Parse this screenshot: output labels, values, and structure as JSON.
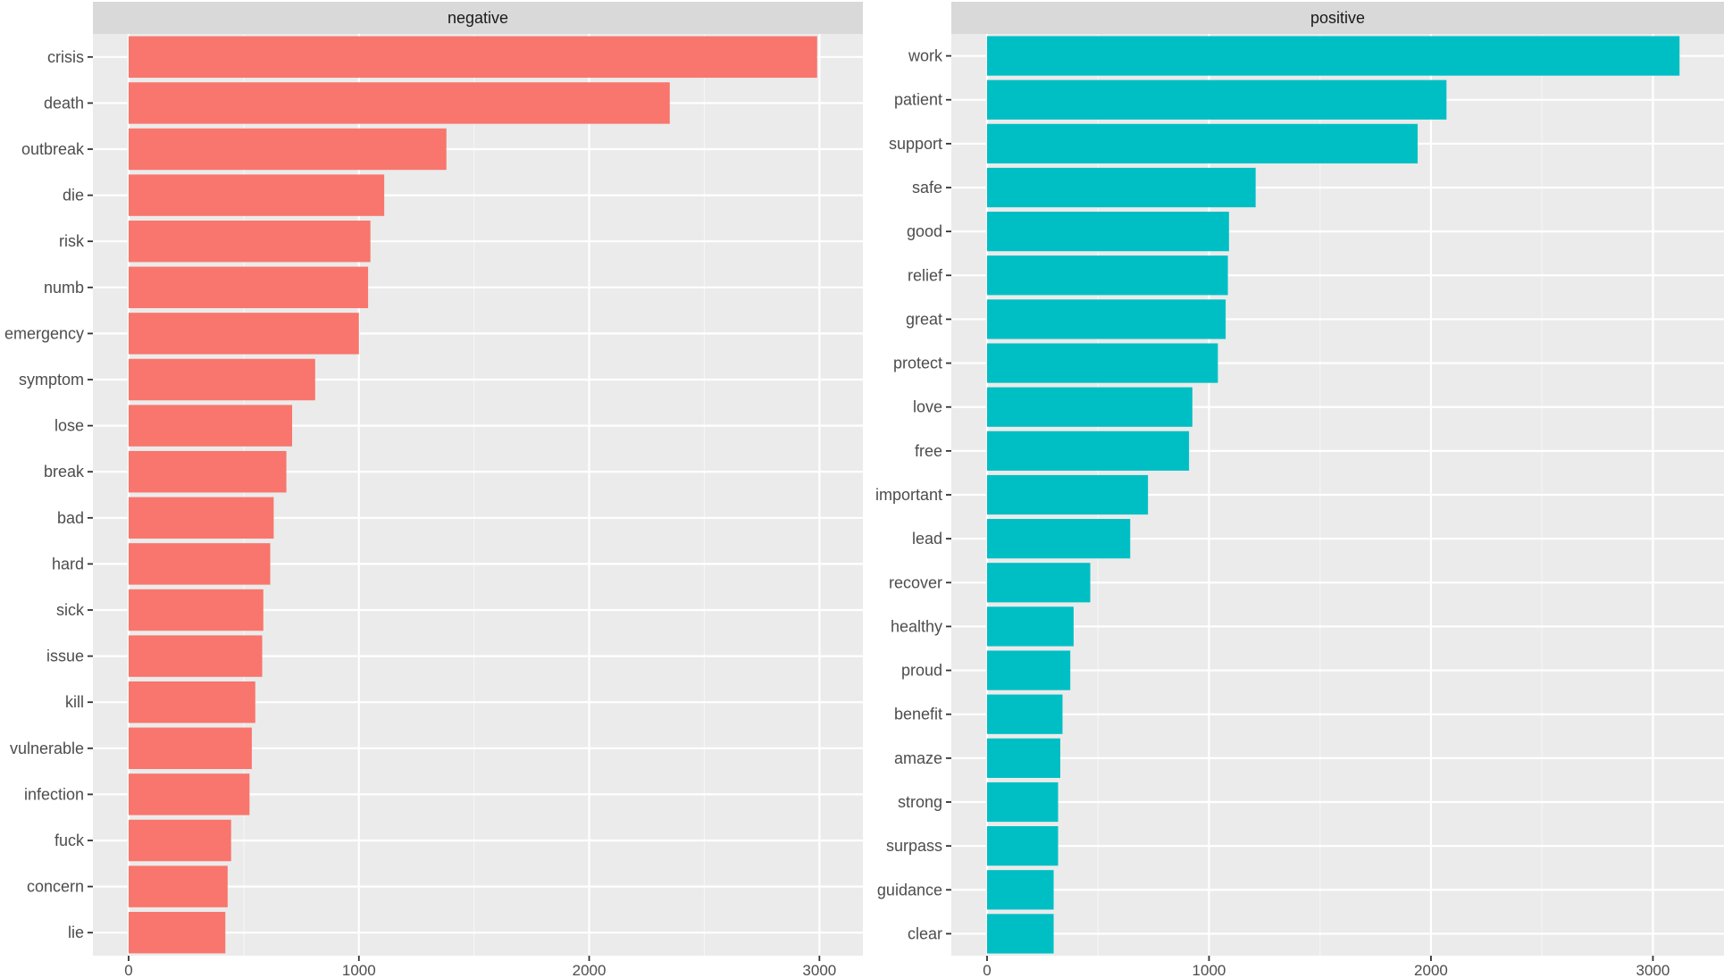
{
  "chart_data": {
    "type": "bar",
    "orientation": "horizontal",
    "x_ticks": [
      0,
      1000,
      2000,
      3000
    ],
    "panels": [
      {
        "title": "negative",
        "color": "#F8766D",
        "xlim": [
          0,
          3150
        ],
        "categories": [
          "crisis",
          "death",
          "outbreak",
          "die",
          "risk",
          "numb",
          "emergency",
          "symptom",
          "lose",
          "break",
          "bad",
          "hard",
          "sick",
          "issue",
          "kill",
          "vulnerable",
          "infection",
          "fuck",
          "concern",
          "lie"
        ],
        "values": [
          2990,
          2350,
          1380,
          1110,
          1050,
          1040,
          1000,
          810,
          710,
          685,
          630,
          615,
          585,
          580,
          550,
          535,
          525,
          445,
          430,
          420
        ]
      },
      {
        "title": "positive",
        "color": "#00BFC4",
        "xlim": [
          0,
          3280
        ],
        "categories": [
          "work",
          "patient",
          "support",
          "safe",
          "good",
          "relief",
          "great",
          "protect",
          "love",
          "free",
          "important",
          "lead",
          "recover",
          "healthy",
          "proud",
          "benefit",
          "amaze",
          "strong",
          "surpass",
          "guidance",
          "clear"
        ],
        "values": [
          3120,
          2070,
          1940,
          1210,
          1090,
          1085,
          1075,
          1040,
          925,
          910,
          725,
          645,
          465,
          390,
          375,
          340,
          330,
          320,
          320,
          300,
          300
        ]
      }
    ]
  }
}
